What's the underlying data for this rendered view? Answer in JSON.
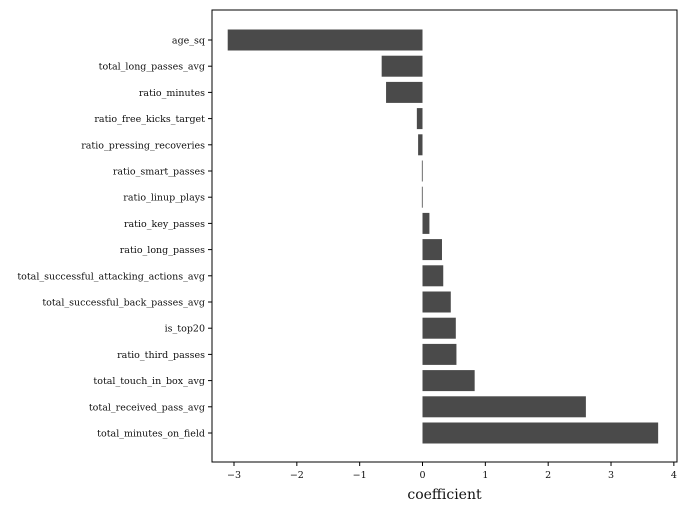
{
  "chart_data": {
    "type": "bar",
    "orientation": "horizontal",
    "title": "",
    "xlabel": "coefficient",
    "ylabel": "",
    "xlim": [
      -3.35,
      4.05
    ],
    "xticks": [
      -3,
      -2,
      -1,
      0,
      1,
      2,
      3,
      4
    ],
    "xtick_labels": [
      "−3",
      "−2",
      "−1",
      "0",
      "1",
      "2",
      "3",
      "4"
    ],
    "grid": false,
    "bar_color": "#4a4a4a",
    "categories": [
      "age_sq",
      "total_long_passes_avg",
      "ratio_minutes",
      "ratio_free_kicks_target",
      "ratio_pressing_recoveries",
      "ratio_smart_passes",
      "ratio_linup_plays",
      "ratio_key_passes",
      "ratio_long_passes",
      "total_successful_attacking_actions_avg",
      "total_successful_back_passes_avg",
      "is_top20",
      "ratio_third_passes",
      "total_touch_in_box_avg",
      "total_received_pass_avg",
      "total_minutes_on_field"
    ],
    "values": [
      -3.1,
      -0.65,
      -0.58,
      -0.09,
      -0.07,
      -0.01,
      -0.01,
      0.11,
      0.31,
      0.33,
      0.45,
      0.53,
      0.54,
      0.83,
      2.6,
      3.75
    ]
  }
}
